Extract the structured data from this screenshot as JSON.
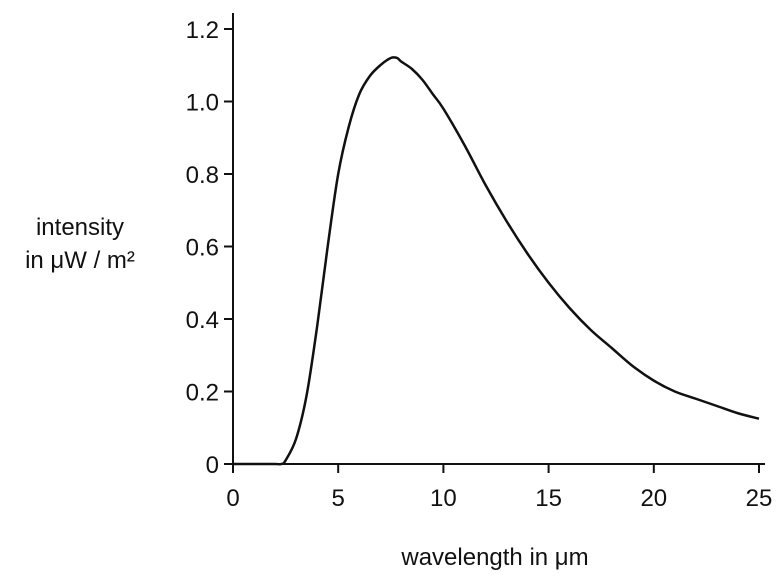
{
  "chart_data": {
    "type": "line",
    "title": "",
    "xlabel": "wavelength in μm",
    "ylabel": [
      "intensity",
      "in μW / m²"
    ],
    "xlim": [
      0,
      25
    ],
    "ylim": [
      0,
      1.2
    ],
    "x_ticks": [
      0,
      5,
      10,
      15,
      20,
      25
    ],
    "x_tick_labels": [
      "0",
      "5",
      "10",
      "15",
      "20",
      "25"
    ],
    "y_ticks": [
      0,
      0.2,
      0.4,
      0.6,
      0.8,
      1.0,
      1.2
    ],
    "y_tick_labels": [
      "0",
      "0.2",
      "0.4",
      "0.6",
      "0.8",
      "1.0",
      "1.2"
    ],
    "grid": false,
    "legend": "none",
    "series": [
      {
        "x": [
          0,
          1,
          2,
          2.3,
          2.5,
          3,
          3.5,
          4,
          4.5,
          5,
          5.5,
          6,
          6.5,
          7,
          7.5,
          7.8,
          8,
          8.5,
          9,
          9.5,
          10,
          11,
          12,
          13,
          14,
          15,
          16,
          17,
          18,
          19,
          20,
          21,
          22,
          23,
          24,
          25
        ],
        "y": [
          0,
          0,
          0,
          0,
          0.01,
          0.07,
          0.19,
          0.38,
          0.6,
          0.8,
          0.93,
          1.02,
          1.07,
          1.1,
          1.12,
          1.12,
          1.11,
          1.09,
          1.06,
          1.02,
          0.98,
          0.88,
          0.77,
          0.67,
          0.58,
          0.5,
          0.43,
          0.37,
          0.32,
          0.27,
          0.23,
          0.2,
          0.18,
          0.16,
          0.14,
          0.125
        ],
        "color": "#111111"
      }
    ]
  }
}
